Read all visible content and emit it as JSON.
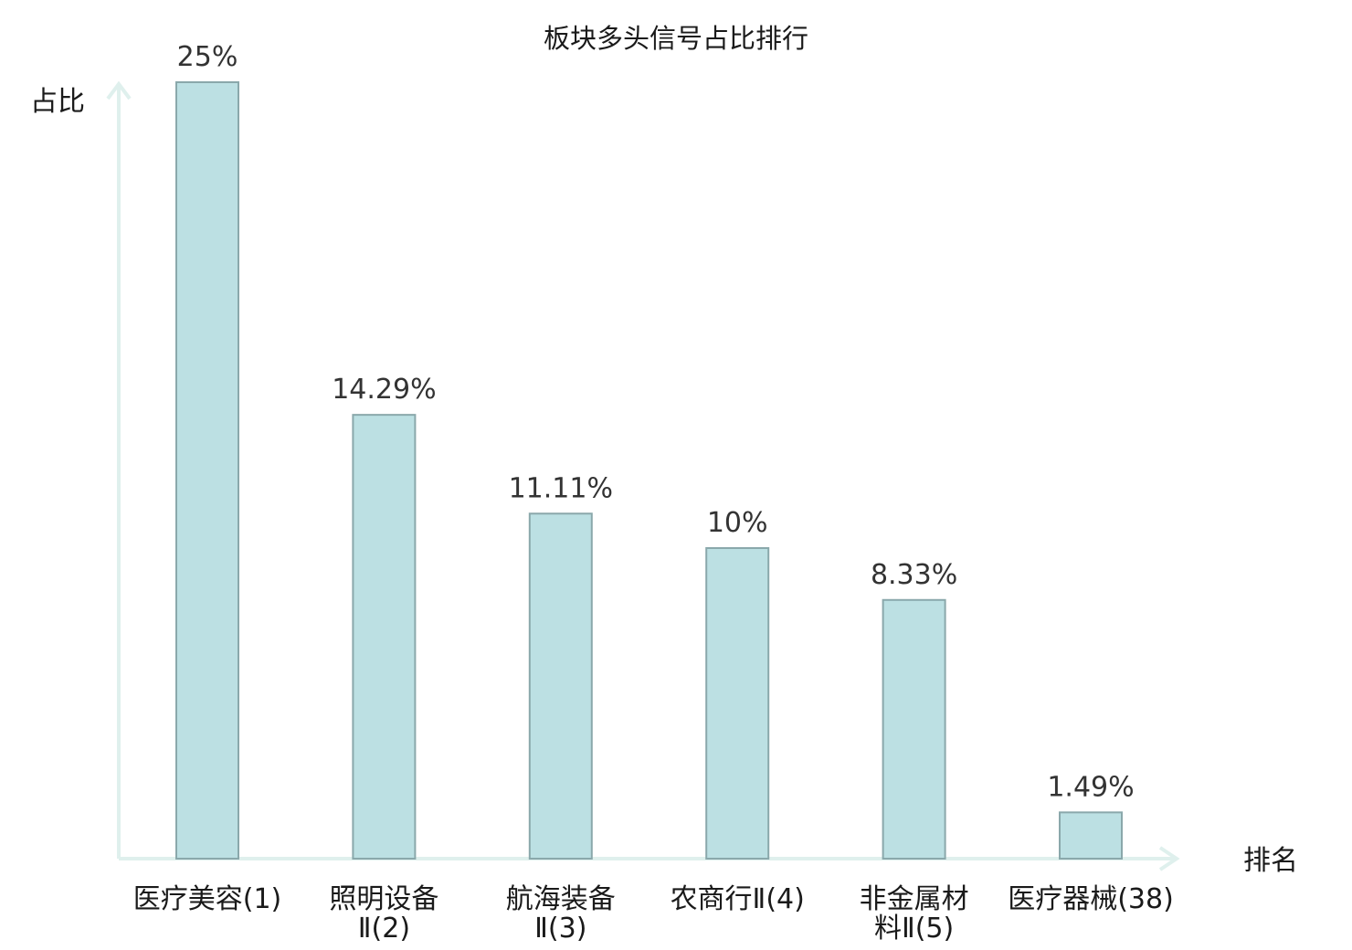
{
  "chart_data": {
    "type": "bar",
    "title": "板块多头信号占比排行",
    "ylabel": "占比",
    "xlabel": "排名",
    "ylim": [
      0,
      25
    ],
    "grid": false,
    "legend": "none",
    "categories": [
      [
        "医疗美容(1)"
      ],
      [
        "照明设备",
        "Ⅱ(2)"
      ],
      [
        "航海装备",
        "Ⅱ(3)"
      ],
      [
        "农商行Ⅱ(4)"
      ],
      [
        "非金属材",
        "料Ⅱ(5)"
      ],
      [
        "医疗器械(38)"
      ]
    ],
    "values": [
      25,
      14.29,
      11.11,
      10,
      8.33,
      1.49
    ],
    "value_labels": [
      "25%",
      "14.29%",
      "11.11%",
      "10%",
      "8.33%",
      "1.49%"
    ],
    "highlight_index": 5,
    "colors": {
      "bar_fill": "#bce0e3",
      "bar_stroke": "#8aa8ab",
      "axis": "#dff0ed",
      "highlight_text": "#e31a1a",
      "text": "#1a1a1a",
      "value_text": "#333333"
    }
  }
}
